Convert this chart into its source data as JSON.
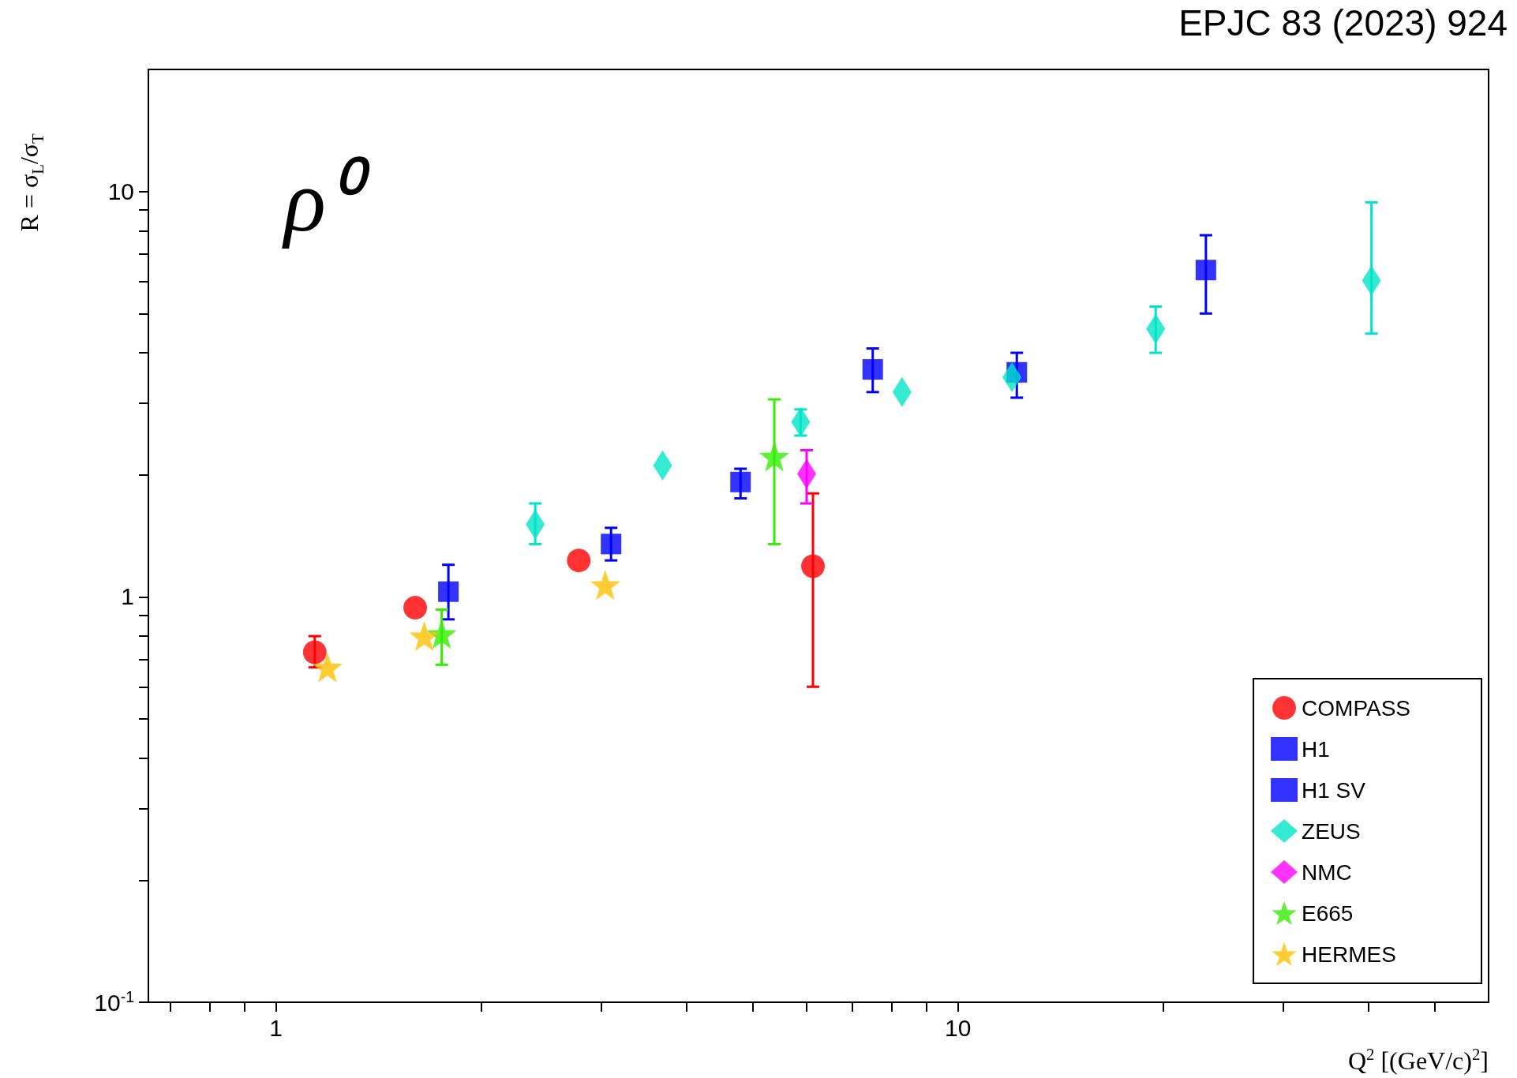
{
  "chart_data": {
    "type": "scatter",
    "xlabel": "Q$^{2}$ [(GeV/c)$^{2}$]",
    "ylabel": "R = σ$_{L}$/σ$_{T}$",
    "annotations": [
      "EPJC 83 (2023) 924",
      "ρ⁰"
    ],
    "log": "xy",
    "xlim": [
      0.65,
      60
    ],
    "ylim": [
      0.1,
      20
    ],
    "xticks": [
      {
        "value": 0.7,
        "label": null
      },
      {
        "value": 0.8,
        "label": null
      },
      {
        "value": 0.9,
        "label": null
      },
      1,
      {
        "value": 2,
        "label": null
      },
      {
        "value": 3,
        "label": null
      },
      {
        "value": 4,
        "label": null
      },
      {
        "value": 5,
        "label": null
      },
      {
        "value": 6,
        "label": null
      },
      {
        "value": 7,
        "label": null
      },
      {
        "value": 8,
        "label": null
      },
      {
        "value": 9,
        "label": null
      },
      10,
      {
        "value": 20,
        "label": null
      },
      {
        "value": 30,
        "label": null
      },
      {
        "value": 40,
        "label": null
      },
      {
        "value": 50,
        "label": null
      }
    ],
    "yticks": [
      {
        "value": 0.1,
        "label": "10$^{-1}$"
      },
      {
        "value": 0.2,
        "label": null
      },
      {
        "value": 0.3,
        "label": null
      },
      {
        "value": 0.4,
        "label": null
      },
      {
        "value": 0.5,
        "label": null
      },
      {
        "value": 0.6,
        "label": null
      },
      {
        "value": 0.7,
        "label": null
      },
      {
        "value": 0.8,
        "label": null
      },
      {
        "value": 0.9,
        "label": null
      },
      1,
      {
        "value": 2,
        "label": null
      },
      {
        "value": 3,
        "label": null
      },
      {
        "value": 4,
        "label": null
      },
      {
        "value": 5,
        "label": null
      },
      {
        "value": 6,
        "label": null
      },
      {
        "value": 7,
        "label": null
      },
      {
        "value": 8,
        "label": null
      },
      {
        "value": 9,
        "label": null
      },
      10
    ],
    "grid": false,
    "legend": "bottom right",
    "series": [
      {
        "name": "COMPASS",
        "color": "#ff0000",
        "marker": "circle",
        "x": [
          1.14,
          1.6,
          2.78,
          6.13
        ],
        "values": [
          0.73,
          0.94,
          1.23,
          1.19
        ],
        "errors": [
          [
            0.67,
            0.8
          ],
          null,
          null,
          [
            0.6,
            1.8
          ]
        ]
      },
      {
        "name": "H1",
        "color": "#0000ff",
        "marker": "square",
        "x": [
          3.1,
          4.8,
          7.5,
          12.2,
          23.1
        ],
        "values": [
          1.35,
          1.92,
          3.64,
          3.58,
          6.4
        ],
        "errors": [
          [
            1.23,
            1.48
          ],
          [
            1.75,
            2.07
          ],
          [
            3.2,
            4.1
          ],
          [
            3.1,
            4.0
          ],
          [
            5.0,
            7.8
          ]
        ]
      },
      {
        "name": "H1 SV",
        "color": "#0000ff",
        "marker": "square",
        "x": [
          1.79
        ],
        "values": [
          1.03
        ],
        "errors": [
          [
            0.88,
            1.2
          ]
        ]
      },
      {
        "name": "ZEUS",
        "color": "#00e5c8",
        "marker": "diamond",
        "x": [
          2.4,
          3.69,
          5.88,
          8.28,
          12.0,
          19.5,
          40.4
        ],
        "values": [
          1.51,
          2.11,
          2.7,
          3.2,
          3.48,
          4.58,
          6.03
        ],
        "errors": [
          [
            1.35,
            1.7
          ],
          null,
          [
            2.5,
            2.9
          ],
          null,
          null,
          [
            4.0,
            5.2
          ],
          [
            4.46,
            9.4
          ]
        ]
      },
      {
        "name": "NMC",
        "color": "#ff00ff",
        "marker": "diamond",
        "x": [
          6.0
        ],
        "values": [
          2.01
        ],
        "errors": [
          [
            1.7,
            2.3
          ]
        ]
      },
      {
        "name": "E665",
        "color": "#33ee00",
        "marker": "star",
        "x": [
          1.75,
          5.38
        ],
        "values": [
          0.81,
          2.22
        ],
        "errors": [
          [
            0.68,
            0.93
          ],
          [
            1.35,
            3.07
          ]
        ]
      },
      {
        "name": "HERMES",
        "color": "#ffc000",
        "marker": "star",
        "x": [
          1.19,
          1.65,
          3.04
        ],
        "values": [
          0.67,
          0.8,
          1.07
        ]
      }
    ]
  }
}
